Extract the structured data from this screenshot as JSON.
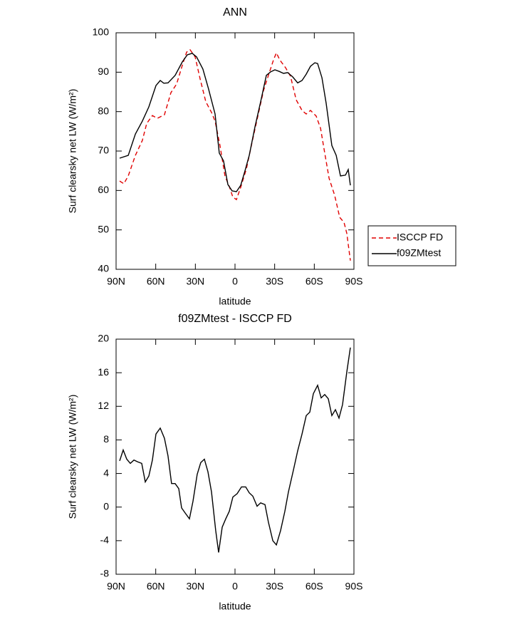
{
  "chart_data": [
    {
      "type": "line",
      "title": "ANN",
      "xlabel": "latitude",
      "ylabel": "Surf clearsky net LW (W/m²)",
      "xlim": [
        90,
        -90
      ],
      "xticks": [
        {
          "value": 90,
          "label": "90N"
        },
        {
          "value": 60,
          "label": "60N"
        },
        {
          "value": 30,
          "label": "30N"
        },
        0,
        {
          "value": -30,
          "label": "30S"
        },
        {
          "value": -60,
          "label": "60S"
        },
        {
          "value": -90,
          "label": "90S"
        }
      ],
      "ylim": [
        40,
        100
      ],
      "yticks": [
        40,
        50,
        60,
        70,
        80,
        90,
        100
      ],
      "legend": "right",
      "series": [
        {
          "name": "ISCCP FD",
          "color": "#e00000",
          "dash": true,
          "x": [
            87.3,
            84.1,
            80.8,
            75.4,
            70.1,
            66.8,
            62.5,
            58.8,
            53.4,
            48.5,
            44.2,
            39.3,
            36.6,
            34.0,
            30.2,
            26.4,
            22.1,
            17.8,
            15.1,
            11.3,
            7.6,
            4.3,
            1.6,
            -1.1,
            -4.3,
            -8.6,
            -13.5,
            -17.3,
            -21.6,
            -25.3,
            -29.1,
            -31.3,
            -33.9,
            -38.3,
            -42.0,
            -46.3,
            -50.7,
            -53.9,
            -57.1,
            -61.4,
            -64.7,
            -67.9,
            -71.2,
            -75.4,
            -79.2,
            -82.5,
            -84.6,
            -87.3
          ],
          "values": [
            62.4,
            61.7,
            63.7,
            68.9,
            72.7,
            77.0,
            79.0,
            78.3,
            79.2,
            84.8,
            87.0,
            92.4,
            95.1,
            95.7,
            93.9,
            88.3,
            82.5,
            79.8,
            77.6,
            71.3,
            63.7,
            61.0,
            58.3,
            57.7,
            60.8,
            65.5,
            73.1,
            78.9,
            85.4,
            89.2,
            93.1,
            94.9,
            93.1,
            91.1,
            89.0,
            83.0,
            80.3,
            79.4,
            80.3,
            78.9,
            75.8,
            69.5,
            63.1,
            58.8,
            53.2,
            51.9,
            49.1,
            42.2
          ]
        },
        {
          "name": "f09ZMtest",
          "color": "#000000",
          "dash": false,
          "x": [
            87.3,
            80.8,
            75.4,
            70.1,
            65.2,
            59.8,
            56.6,
            53.9,
            50.7,
            45.3,
            39.9,
            36.1,
            32.4,
            29.1,
            24.3,
            20.0,
            15.1,
            11.9,
            8.7,
            5.4,
            2.2,
            -1.1,
            -4.3,
            -7.5,
            -10.8,
            -15.1,
            -19.4,
            -23.7,
            -27.0,
            -30.2,
            -33.4,
            -36.7,
            -39.9,
            -43.7,
            -47.4,
            -50.7,
            -53.9,
            -57.1,
            -60.4,
            -62.5,
            -65.8,
            -69.0,
            -73.3,
            -76.6,
            -79.8,
            -83.6,
            -85.7,
            -87.3
          ],
          "values": [
            68.2,
            68.9,
            74.3,
            77.6,
            81.2,
            86.6,
            87.9,
            87.2,
            87.3,
            89.2,
            92.6,
            94.4,
            94.8,
            93.9,
            90.8,
            85.7,
            79.4,
            69.5,
            67.5,
            61.5,
            59.9,
            59.7,
            61.3,
            64.9,
            68.9,
            76.1,
            82.5,
            89.2,
            90.1,
            90.6,
            90.2,
            89.7,
            89.9,
            88.8,
            87.3,
            87.9,
            89.5,
            91.5,
            92.4,
            92.2,
            88.6,
            82.1,
            71.4,
            68.9,
            63.7,
            63.9,
            65.3,
            61.3
          ]
        }
      ]
    },
    {
      "type": "line",
      "title": "f09ZMtest - ISCCP FD",
      "xlabel": "latitude",
      "ylabel": "Surf clearsky net LW (W/m²)",
      "xlim": [
        90,
        -90
      ],
      "xticks": [
        {
          "value": 90,
          "label": "90N"
        },
        {
          "value": 60,
          "label": "60N"
        },
        {
          "value": 30,
          "label": "30N"
        },
        0,
        {
          "value": -30,
          "label": "30S"
        },
        {
          "value": -60,
          "label": "60S"
        },
        {
          "value": -90,
          "label": "90S"
        }
      ],
      "ylim": [
        -8,
        20
      ],
      "yticks": [
        -8,
        -4,
        0,
        4,
        8,
        12,
        16,
        20
      ],
      "series": [
        {
          "color": "#000000",
          "dash": false,
          "x": [
            87.3,
            84.6,
            81.9,
            79.2,
            76.5,
            73.8,
            70.6,
            67.9,
            65.2,
            62.5,
            59.8,
            56.6,
            53.4,
            50.7,
            48.0,
            45.3,
            42.6,
            40.4,
            37.7,
            34.5,
            31.8,
            28.6,
            25.9,
            23.2,
            20.5,
            17.8,
            14.6,
            12.4,
            9.7,
            7.0,
            4.3,
            1.6,
            -1.6,
            -4.9,
            -8.1,
            -10.8,
            -13.5,
            -16.7,
            -19.4,
            -22.7,
            -25.3,
            -28.6,
            -31.3,
            -34.5,
            -37.7,
            -40.4,
            -44.2,
            -47.4,
            -50.7,
            -53.9,
            -56.6,
            -59.3,
            -62.5,
            -65.2,
            -67.9,
            -70.6,
            -73.3,
            -76.0,
            -78.7,
            -81.4,
            -84.6,
            -87.3
          ],
          "values": [
            5.5,
            6.8,
            5.7,
            5.2,
            5.6,
            5.4,
            5.2,
            3.0,
            3.7,
            5.6,
            8.7,
            9.4,
            8.2,
            6.1,
            2.8,
            2.8,
            2.2,
            -0.1,
            -0.7,
            -1.4,
            0.7,
            3.9,
            5.3,
            5.7,
            4.2,
            1.8,
            -2.8,
            -5.4,
            -2.4,
            -1.4,
            -0.5,
            1.2,
            1.6,
            2.4,
            2.4,
            1.7,
            1.3,
            0.1,
            0.5,
            0.3,
            -1.8,
            -4.0,
            -4.5,
            -2.8,
            -0.5,
            1.8,
            4.4,
            6.7,
            8.7,
            10.9,
            11.3,
            13.5,
            14.5,
            13.0,
            13.4,
            12.9,
            10.9,
            11.6,
            10.6,
            12.2,
            16.1,
            19.0
          ]
        }
      ]
    }
  ]
}
